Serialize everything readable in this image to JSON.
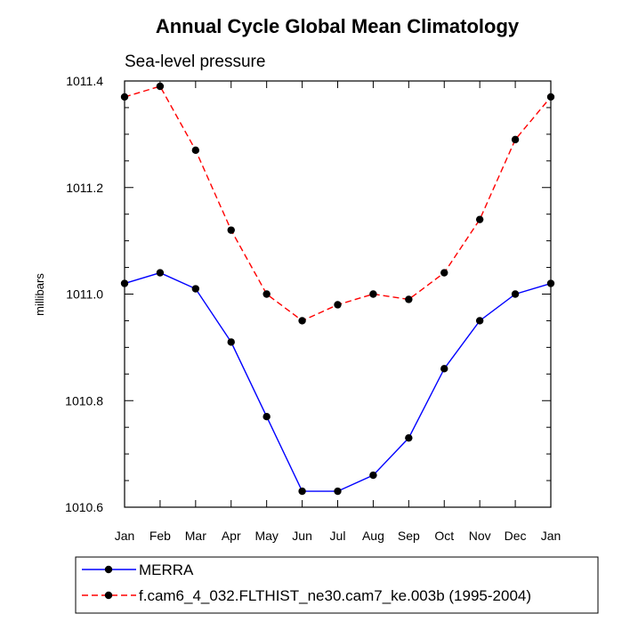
{
  "chart_data": {
    "type": "line",
    "title": "Annual Cycle Global Mean Climatology",
    "subtitle": "Sea-level pressure",
    "ylabel": "millibars",
    "xlabel": "",
    "categories": [
      "Jan",
      "Feb",
      "Mar",
      "Apr",
      "May",
      "Jun",
      "Jul",
      "Aug",
      "Sep",
      "Oct",
      "Nov",
      "Dec",
      "Jan"
    ],
    "ylim": [
      1010.6,
      1011.4
    ],
    "yticks": [
      1010.6,
      1010.8,
      1011.0,
      1011.2,
      1011.4
    ],
    "ytick_labels": [
      "1010.6",
      "1010.8",
      "1011.0",
      "1011.2",
      "1011.4"
    ],
    "legend_position": "bottom",
    "series": [
      {
        "name": "MERRA",
        "color": "#0000ff",
        "dash": "solid",
        "values": [
          1011.02,
          1011.04,
          1011.01,
          1010.91,
          1010.77,
          1010.63,
          1010.63,
          1010.66,
          1010.73,
          1010.86,
          1010.95,
          1011.0,
          1011.02
        ]
      },
      {
        "name": "f.cam6_4_032.FLTHIST_ne30.cam7_ke.003b (1995-2004)",
        "color": "#ff0000",
        "dash": "dashed",
        "values": [
          1011.37,
          1011.39,
          1011.27,
          1011.12,
          1011.0,
          1010.95,
          1010.98,
          1011.0,
          1010.99,
          1011.04,
          1011.14,
          1011.29,
          1011.37
        ]
      }
    ]
  }
}
